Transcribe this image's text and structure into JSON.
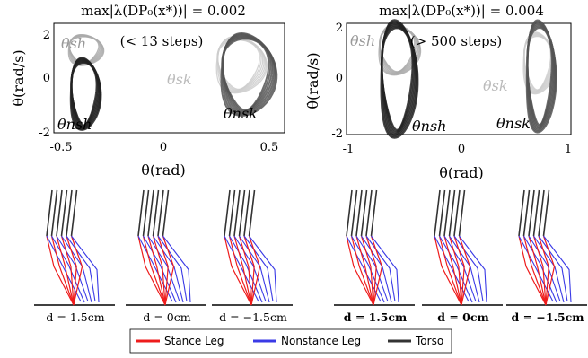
{
  "panels": [
    {
      "title": "max|λ(DP₀(x*))| = 0.002",
      "annotation": "(< 13 steps)",
      "xlabel": "θ(rad)",
      "ylabel": "θ̇(rad/s)",
      "xticks": [
        "-0.5",
        "0",
        "0.5"
      ],
      "yticks": [
        "2",
        "0",
        "-2"
      ],
      "labels": {
        "sh": "θsh",
        "sk": "θsk",
        "nsh": "θnsh",
        "nsk": "θnsk"
      }
    },
    {
      "title": "max|λ(DP₀(x*))| = 0.004",
      "annotation": "(> 500 steps)",
      "xlabel": "θ(rad)",
      "ylabel": "θ̇(rad/s)",
      "xticks": [
        "-1",
        "0",
        "1"
      ],
      "yticks": [
        "2",
        "0",
        "-2"
      ],
      "labels": {
        "sh": "θsh",
        "sk": "θsk",
        "nsh": "θnsh",
        "nsk": "θnsk"
      }
    }
  ],
  "captions": {
    "left": [
      "d = 1.5cm",
      "d = 0cm",
      "d = −1.5cm"
    ],
    "right": [
      "d = 1.5cm",
      "d = 0cm",
      "d = −1.5cm"
    ]
  },
  "legend": {
    "items": [
      {
        "label": "Stance Leg",
        "color": "#ee1c1c"
      },
      {
        "label": "Nonstance Leg",
        "color": "#3a3ae6"
      },
      {
        "label": "Torso",
        "color": "#333333"
      }
    ]
  },
  "chart_data": [
    {
      "type": "line",
      "xlabel": "θ(rad)",
      "ylabel": "θ̇(rad/s)",
      "xlim": [
        -0.5,
        0.5
      ],
      "ylim": [
        -2,
        2.5
      ],
      "title": "max|λ(DP₀(x*))| = 0.002",
      "series": [
        {
          "name": "θsh",
          "color": "#aaaaaa",
          "cx": -0.37,
          "cy": 1.4,
          "rx": 0.07,
          "ry": 0.6
        },
        {
          "name": "θnsh",
          "color": "#222222",
          "cx": -0.37,
          "cy": -0.4,
          "rx": 0.06,
          "ry": 1.4
        },
        {
          "name": "θsk",
          "color": "#cccccc",
          "cx": 0.3,
          "cy": 0.8,
          "rx": 0.1,
          "ry": 1.1
        },
        {
          "name": "θnsk",
          "color": "#555555",
          "cx": 0.33,
          "cy": 0.4,
          "rx": 0.11,
          "ry": 1.6
        }
      ]
    },
    {
      "type": "line",
      "xlabel": "θ(rad)",
      "ylabel": "θ̇(rad/s)",
      "xlim": [
        -1,
        1
      ],
      "ylim": [
        -2.2,
        2
      ],
      "title": "max|λ(DP₀(x*))| = 0.004",
      "series": [
        {
          "name": "θsh",
          "color": "#aaaaaa",
          "cx": -0.55,
          "cy": 1.0,
          "rx": 0.17,
          "ry": 0.9
        },
        {
          "name": "θnsh",
          "color": "#222222",
          "cx": -0.55,
          "cy": -0.1,
          "rx": 0.15,
          "ry": 2.1
        },
        {
          "name": "θsk",
          "color": "#cccccc",
          "cx": 0.7,
          "cy": 0.5,
          "rx": 0.13,
          "ry": 1.1
        },
        {
          "name": "θnsk",
          "color": "#555555",
          "cx": 0.72,
          "cy": 0.0,
          "rx": 0.12,
          "ry": 2.0
        }
      ]
    }
  ]
}
